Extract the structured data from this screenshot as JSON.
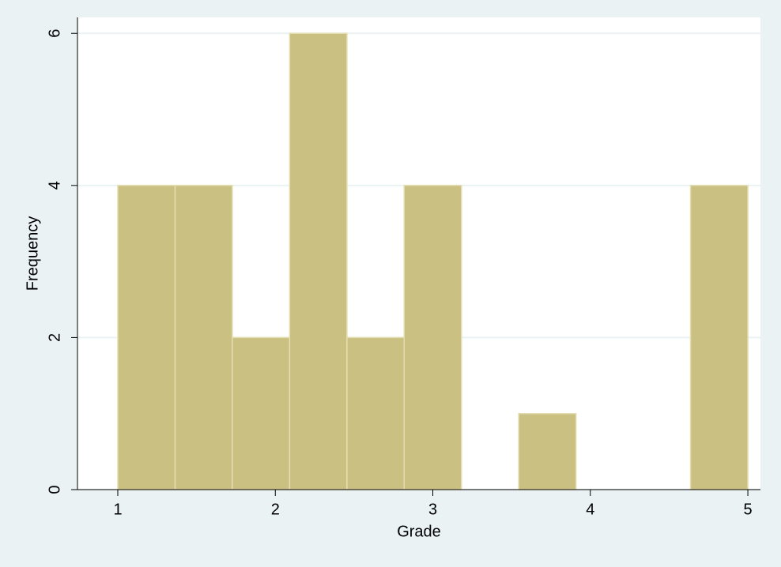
{
  "chart_data": {
    "type": "histogram",
    "xlabel": "Grade",
    "ylabel": "Frequency",
    "bins": [
      1,
      1.364,
      1.727,
      2.091,
      2.455,
      2.818,
      3.182,
      3.545,
      3.909,
      4.273,
      4.636,
      5
    ],
    "counts": [
      4,
      4,
      2,
      6,
      2,
      4,
      0,
      1,
      0,
      0,
      4
    ],
    "color": "#cac081",
    "xlim": [
      0.744,
      5.08
    ],
    "xticks": [
      1,
      2,
      3,
      4,
      5
    ],
    "ylim": [
      0,
      6.21
    ],
    "yticks": [
      0,
      2,
      4,
      6
    ],
    "grid": true
  }
}
